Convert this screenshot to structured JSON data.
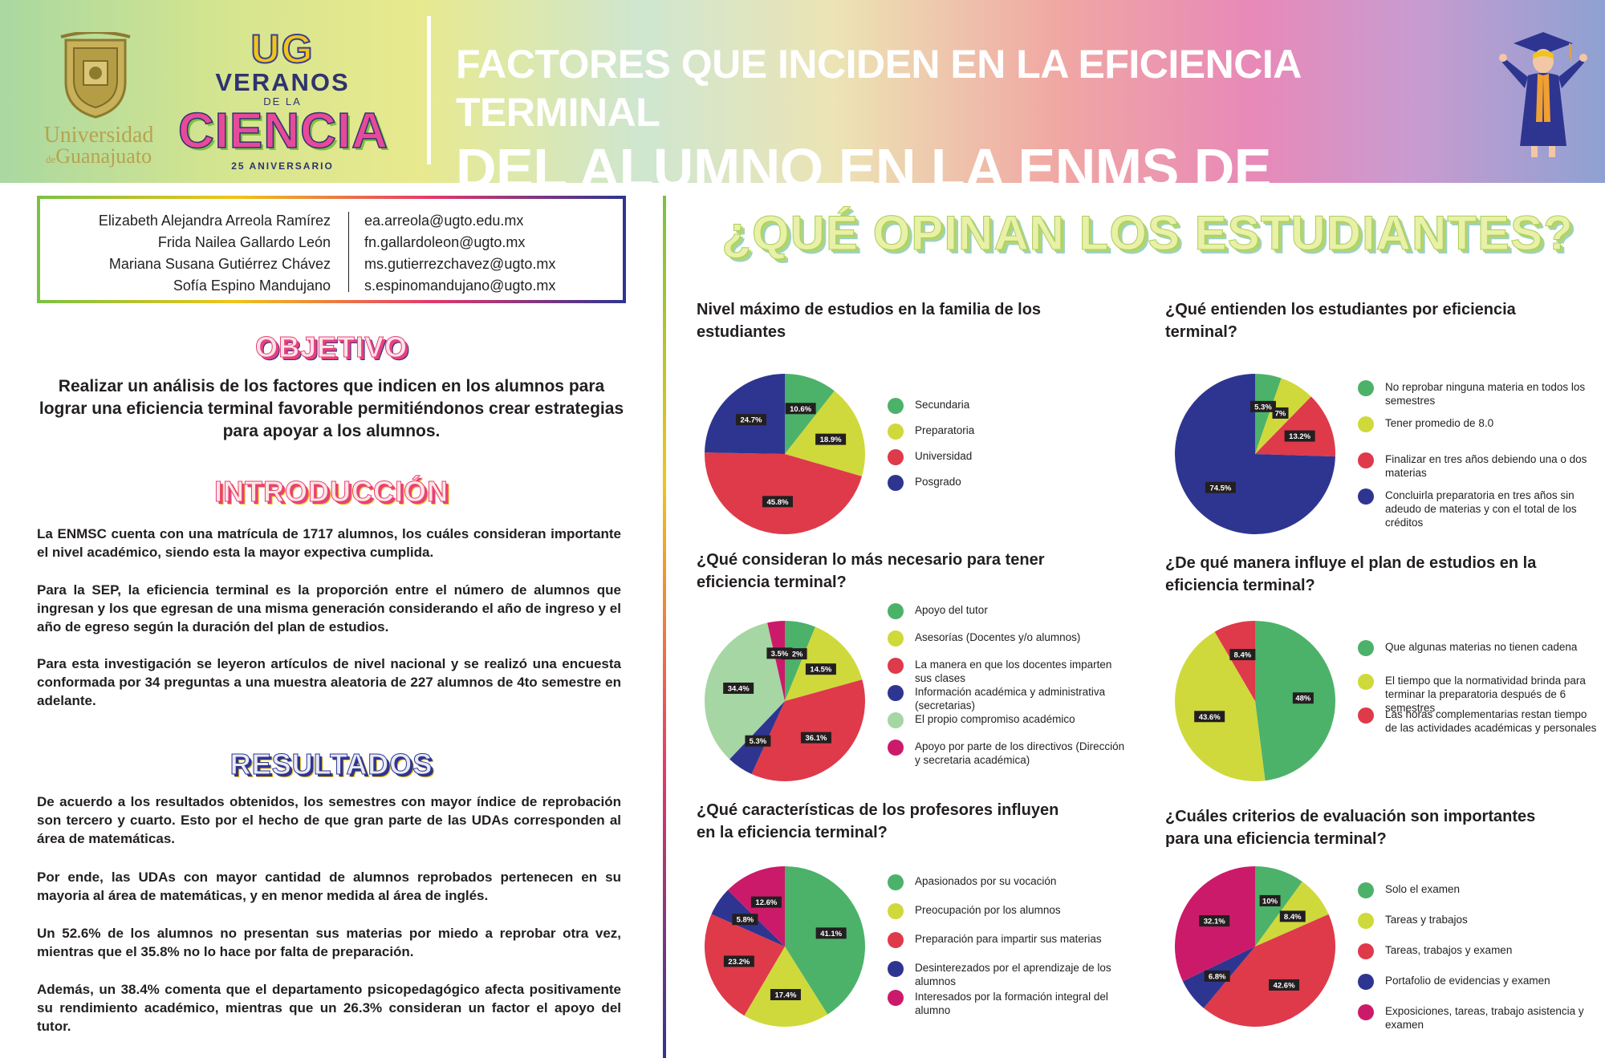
{
  "header": {
    "university": "Universidad",
    "university_de": "de",
    "university_city": "Guanajuato",
    "program_ug": "UG",
    "program_veranos": "VERANOS",
    "program_dela": "DE LA",
    "program_ciencia": "CIENCIA",
    "program_anniversary": "25 ANIVERSARIO",
    "title_line1": "FACTORES QUE INCIDEN EN LA EFICIENCIA TERMINAL",
    "title_line2": "DEL ALUMNO EN LA ENMS DE CELAYA"
  },
  "authors": [
    {
      "name": "Elizabeth Alejandra Arreola Ramírez",
      "email": "ea.arreola@ugto.edu.mx"
    },
    {
      "name": "Frida Nailea Gallardo León",
      "email": "fn.gallardoleon@ugto.mx"
    },
    {
      "name": "Mariana Susana Gutiérrez Chávez",
      "email": "ms.gutierrezchavez@ugto.mx"
    },
    {
      "name": "Sofía Espino Mandujano",
      "email": "s.espinomandujano@ugto.mx"
    }
  ],
  "objective": {
    "heading": "OBJETIVO",
    "text": "Realizar un análisis de los factores que indicen en los alumnos para lograr una eficiencia terminal favorable permitiéndonos crear estrategias para apoyar a los alumnos."
  },
  "introduction": {
    "heading": "INTRODUCCIÓN",
    "p1": "La ENMSC cuenta con una matrícula de 1717 alumnos, los cuáles consideran importante el nivel académico, siendo esta la mayor expectiva cumplida.",
    "p2": "Para la SEP, la eficiencia terminal es la proporción entre el número de alumnos que ingresan y los que egresan de una misma generación considerando el año de ingreso y el año de egreso según la duración del plan de estudios.",
    "p3": "Para esta investigación se leyeron artículos de nivel nacional y se realizó una encuesta conformada por 34 preguntas a una muestra aleatoria de 227 alumnos de 4to semestre en adelante."
  },
  "results": {
    "heading": "RESULTADOS",
    "p1": "De acuerdo a los resultados obtenidos, los semestres con mayor índice de reprobación son tercero y cuarto. Esto por el hecho de que gran parte de las UDAs corresponden al área de matemáticas.",
    "p2": "Por ende, las UDAs con mayor cantidad de alumnos reprobados pertenecen en su mayoria al área de matemáticas, y en menor medida al área de inglés.",
    "p3": "Un 52.6% de los alumnos no presentan sus materias por miedo a reprobar otra vez, mientras que el 35.8% no lo hace por falta de preparación.",
    "p4": "Además, un 38.4% comenta que el departamento psicopedagógico afecta positivamente su rendimiento académico, mientras que un 26.3% consideran un factor el apoyo del tutor."
  },
  "right_title": "¿QUÉ OPINAN LOS ESTUDIANTES?",
  "colors": {
    "green": "#4cb26a",
    "lime": "#cfd93b",
    "red": "#de3a4a",
    "navy": "#2e3590",
    "mint": "#a5d6a3",
    "magenta": "#cc1a6a"
  },
  "chart_data": [
    {
      "type": "pie",
      "title": "Nivel máximo de estudios en la familia de los estudiantes",
      "categories": [
        "Secundaria",
        "Preparatoria",
        "Universidad",
        "Posgrado"
      ],
      "values": [
        10.6,
        18.9,
        45.8,
        24.7
      ],
      "labels": [
        "10.6%",
        "18.9%",
        "45.8%",
        "24.7%"
      ],
      "colors": [
        "#4cb26a",
        "#cfd93b",
        "#de3a4a",
        "#2e3590"
      ],
      "legend": "right"
    },
    {
      "type": "pie",
      "title": "¿Qué entienden los estudiantes por eficiencia terminal?",
      "categories": [
        "No reprobar ninguna materia en todos los semestres",
        "Tener promedio de 8.0",
        "Finalizar en tres años debiendo una o dos materias",
        "Concluirla preparatoria en tres años sin adeudo de materias y con el total de los créditos"
      ],
      "values": [
        5.3,
        7,
        13.2,
        74.5
      ],
      "labels": [
        "5.3%",
        "7%",
        "13.2%",
        "74.5%"
      ],
      "colors": [
        "#4cb26a",
        "#cfd93b",
        "#de3a4a",
        "#2e3590"
      ],
      "legend": "right"
    },
    {
      "type": "pie",
      "title": "¿Qué consideran lo más necesario para tener eficiencia terminal?",
      "categories": [
        "Apoyo del tutor",
        "Asesorías (Docentes y/o alumnos)",
        "La manera en que los docentes imparten sus clases",
        "Información académica y administrativa (secretarias)",
        "El propio compromiso académico",
        "Apoyo por parte de los directivos (Dirección y secretaria académica)"
      ],
      "values": [
        6.2,
        14.5,
        36.1,
        5.3,
        34.4,
        3.5
      ],
      "labels": [
        "6.2%",
        "14.5%",
        "36.1%",
        "5.3%",
        "34.4%",
        "3.5%"
      ],
      "colors": [
        "#4cb26a",
        "#cfd93b",
        "#de3a4a",
        "#2e3590",
        "#a5d6a3",
        "#cc1a6a"
      ],
      "legend": "right"
    },
    {
      "type": "pie",
      "title": "¿De qué manera influye el plan de estudios en la eficiencia terminal?",
      "categories": [
        "Que algunas materias no tienen cadena",
        "El tiempo que la normatividad brinda para terminar la preparatoria después de 6 semestres",
        "Las horas complementarias restan tiempo de las actividades académicas y personales"
      ],
      "values": [
        48,
        43.6,
        8.4
      ],
      "labels": [
        "48%",
        "43.6%",
        "8.4%"
      ],
      "colors": [
        "#4cb26a",
        "#cfd93b",
        "#de3a4a"
      ],
      "legend": "right"
    },
    {
      "type": "pie",
      "title": "¿Qué características de los profesores influyen en la eficiencia terminal?",
      "categories": [
        "Apasionados por su vocación",
        "Preocupación por los alumnos",
        "Preparación para impartir sus materias",
        "Desinterezados por el aprendizaje de los alumnos",
        "Interesados por la formación integral del alumno"
      ],
      "values": [
        41.1,
        17.4,
        23.2,
        5.8,
        12.6
      ],
      "labels": [
        "41.1%",
        "17.4%",
        "23.2%",
        "5.8%",
        "12.6%"
      ],
      "colors": [
        "#4cb26a",
        "#cfd93b",
        "#de3a4a",
        "#2e3590",
        "#cc1a6a"
      ],
      "legend": "right"
    },
    {
      "type": "pie",
      "title": "¿Cuáles criterios de evaluación son importantes para una eficiencia terminal?",
      "categories": [
        "Solo el examen",
        "Tareas y trabajos",
        "Tareas, trabajos y examen",
        "Portafolio de evidencias y examen",
        "Exposiciones, tareas, trabajo asistencia y examen"
      ],
      "values": [
        10,
        8.4,
        42.6,
        6.8,
        32.1
      ],
      "labels": [
        "10%",
        "8.4%",
        "42.6%",
        "6.8%",
        "32.1%"
      ],
      "colors": [
        "#4cb26a",
        "#cfd93b",
        "#de3a4a",
        "#2e3590",
        "#cc1a6a"
      ],
      "legend": "right"
    }
  ]
}
